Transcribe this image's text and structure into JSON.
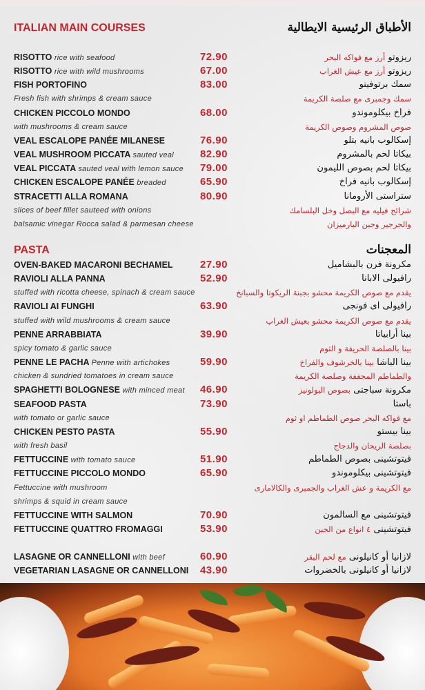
{
  "colors": {
    "accent": "#c0272d",
    "text": "#1d1d1d",
    "background": "#ebebec"
  },
  "main_courses": {
    "title_en": "ITALIAN MAIN COURSES",
    "title_ar": "الأطباق الرئيسية الايطالية",
    "lines": [
      {
        "en": "RISOTTO",
        "en_note": "rice with seafood",
        "price": "72.90",
        "ar": "ريزوتو",
        "ar_note": "أرز مع فواكه البحر"
      },
      {
        "en": "RISOTTO",
        "en_note": "rice with wild mushrooms",
        "price": "67.00",
        "ar": "ريزوتو",
        "ar_note": "أرز مع عيش الغراب"
      },
      {
        "en": "FISH PORTOFINO",
        "price": "83.00",
        "ar": "سمك برتوفينو"
      },
      {
        "en_desc": "Fresh fish with shrimps & cream sauce",
        "ar_desc": "سمك وجمبرى مع صلصة الكريمة"
      },
      {
        "en": "CHICKEN PICCOLO MONDO",
        "price": "68.00",
        "ar": "فراخ بيكلوموندو"
      },
      {
        "en_desc": "with mushrooms & cream sauce",
        "ar_desc": "صوص المشروم وصوص الكريمة"
      },
      {
        "en": "VEAL ESCALOPE PANÉE MILANESE",
        "price": "76.90",
        "ar": "إسكالوب بانيه بتلو"
      },
      {
        "en": "VEAL MUSHROOM PICCATA",
        "en_note": "sauted veal",
        "price": "82.90",
        "ar": "بيكاتا لحم بالمشروم"
      },
      {
        "en": "VEAL PICCATA",
        "en_note": "sauted veal with lemon sauce",
        "price": "79.00",
        "ar": "بيكاتا لحم بصوص الليمون"
      },
      {
        "en": "CHICKEN ESCALOPE PANÉE",
        "en_note": "breaded",
        "price": "65.90",
        "ar": "إسكالوب بانيه فراخ"
      },
      {
        "en": "STRACETTI ALLA ROMANA",
        "price": "80.90",
        "ar": "ستراستى الأرومانا"
      },
      {
        "en_desc": "slices of beef fillet sauteed with onions",
        "ar_desc": "شرائح فيليه مع البصل وخل البلسامك"
      },
      {
        "en_desc": "balsamic vinegar Rocca salad & parmesan cheese",
        "ar_desc": "والجرجير وجبن البارميزان"
      }
    ]
  },
  "pasta": {
    "title_en": "PASTA",
    "title_ar": "المعجنات",
    "lines": [
      {
        "en": "OVEN-BAKED MACARONI BECHAMEL",
        "price": "27.90",
        "ar": "مكرونة فرن بالبشاميل"
      },
      {
        "en": "RAVIOLI ALLA PANNA",
        "price": "52.90",
        "ar": "رافيولى الابانا"
      },
      {
        "en_desc": "stuffed with ricotta cheese, spinach & cream sauce",
        "ar_desc": "يقدم مع صوص الكريمة محشو بجبنة الريكوتا والسبانخ"
      },
      {
        "en": "RAVIOLI AI FUNGHI",
        "price": "63.90",
        "ar": "رافيولى اى فونجى"
      },
      {
        "en_desc": "stuffed with wild mushrooms & cream sauce",
        "ar_desc": "يقدم مع صوص الكريمة محشو بعيش الغراب"
      },
      {
        "en": "PENNE ARRABBIATA",
        "price": "39.90",
        "ar": "بينا أرابياتا"
      },
      {
        "en_desc": "spicy tomato & garlic sauce",
        "ar_desc": "بينا بالصلصة الحريفة و الثوم"
      },
      {
        "en": "PENNE LE PACHA",
        "en_note": "Penne with artichokes",
        "price": "59.90",
        "ar": "بينا الباشا",
        "ar_note": "بينا بالخرشوف والفراخ"
      },
      {
        "en_desc": "chicken & sundried tomatoes in cream sauce",
        "ar_desc": "والطماطم المجففة وصلصة الكريمة"
      },
      {
        "en": "SPAGHETTI BOLOGNESE",
        "en_note": "with minced meat",
        "price": "46.90",
        "ar": "مكرونة سباجتى",
        "ar_note": "بصوص البولونيز"
      },
      {
        "en": "SEAFOOD PASTA",
        "price": "73.90",
        "ar": "باستا"
      },
      {
        "en_desc": "with tomato or garlic sauce",
        "ar_desc": "مع فواكه البحر  صوص الطماطم او ثوم"
      },
      {
        "en": "CHICKEN PESTO PASTA",
        "price": "55.90",
        "ar": "بينا بيستو"
      },
      {
        "en_desc": "with fresh basil",
        "ar_desc": "بصلصة الريحان والدجاج"
      },
      {
        "en": "FETTUCCINE",
        "en_note": "with tomato sauce",
        "price": "51.90",
        "ar": "فيتوتشينى بصوص الطماطم"
      },
      {
        "en": "FETTUCCINE PICCOLO MONDO",
        "price": "65.90",
        "ar": "فيتوتشينى بيكلوموندو"
      },
      {
        "en_desc": "Fettuccine with mushroom",
        "ar_desc": "مع الكريمة و عش الغراب والجمبرى والكالامارى"
      },
      {
        "en_desc": " shrimps & squid in cream sauce"
      },
      {
        "en": "FETTUCCINE WITH SALMON",
        "price": "70.90",
        "ar": "فيتوتشينى مع السالمون"
      },
      {
        "en": "FETTUCCINE QUATTRO FROMAGGI",
        "price": "53.90",
        "ar": "فيتوتشينى",
        "ar_note": "٤ انواع من الجبن"
      },
      {
        "gap": true
      },
      {
        "en": "LASAGNE OR CANNELLONI",
        "en_note": "with beef",
        "price": "60.90",
        "ar": "لازانيا أو كانيلونى",
        "ar_note": "مع لحم البقر"
      },
      {
        "en": "VEGETARIAN LASAGNE OR CANNELLONI",
        "price": "43.90",
        "ar": "لازانيا أو كانيلونى بالخضروات"
      }
    ]
  }
}
